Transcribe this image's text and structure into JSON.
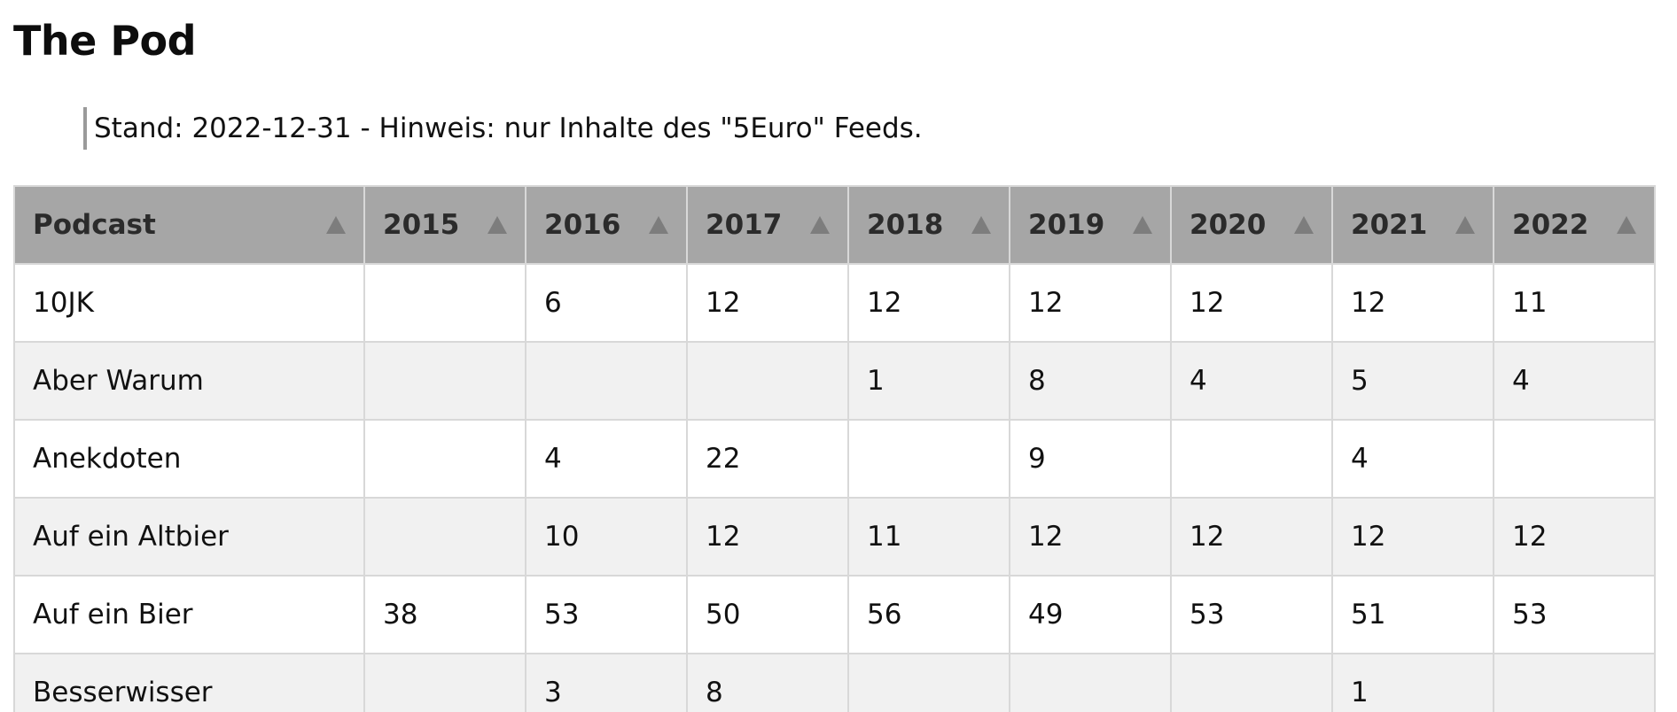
{
  "page": {
    "title": "The Pod",
    "note": "Stand: 2022-12-31 - Hinweis: nur Inhalte des \"5Euro\" Feeds."
  },
  "table": {
    "columns": [
      "Podcast",
      "2015",
      "2016",
      "2017",
      "2018",
      "2019",
      "2020",
      "2021",
      "2022"
    ],
    "sort_icon": "triangle-up-icon",
    "rows": [
      [
        "10JK",
        "",
        "6",
        "12",
        "12",
        "12",
        "12",
        "12",
        "11"
      ],
      [
        "Aber Warum",
        "",
        "",
        "",
        "1",
        "8",
        "4",
        "5",
        "4"
      ],
      [
        "Anekdoten",
        "",
        "4",
        "22",
        "",
        "9",
        "",
        "4",
        ""
      ],
      [
        "Auf ein Altbier",
        "",
        "10",
        "12",
        "11",
        "12",
        "12",
        "12",
        "12"
      ],
      [
        "Auf ein Bier",
        "38",
        "53",
        "50",
        "56",
        "49",
        "53",
        "51",
        "53"
      ],
      [
        "Besserwisser",
        "",
        "3",
        "8",
        "",
        "",
        "",
        "1",
        ""
      ]
    ]
  },
  "colors": {
    "header_bg": "#a6a6a6",
    "row_alt_bg": "#f1f1f1",
    "border": "#d8d8d8",
    "quote_bar": "#9a9a9a"
  }
}
